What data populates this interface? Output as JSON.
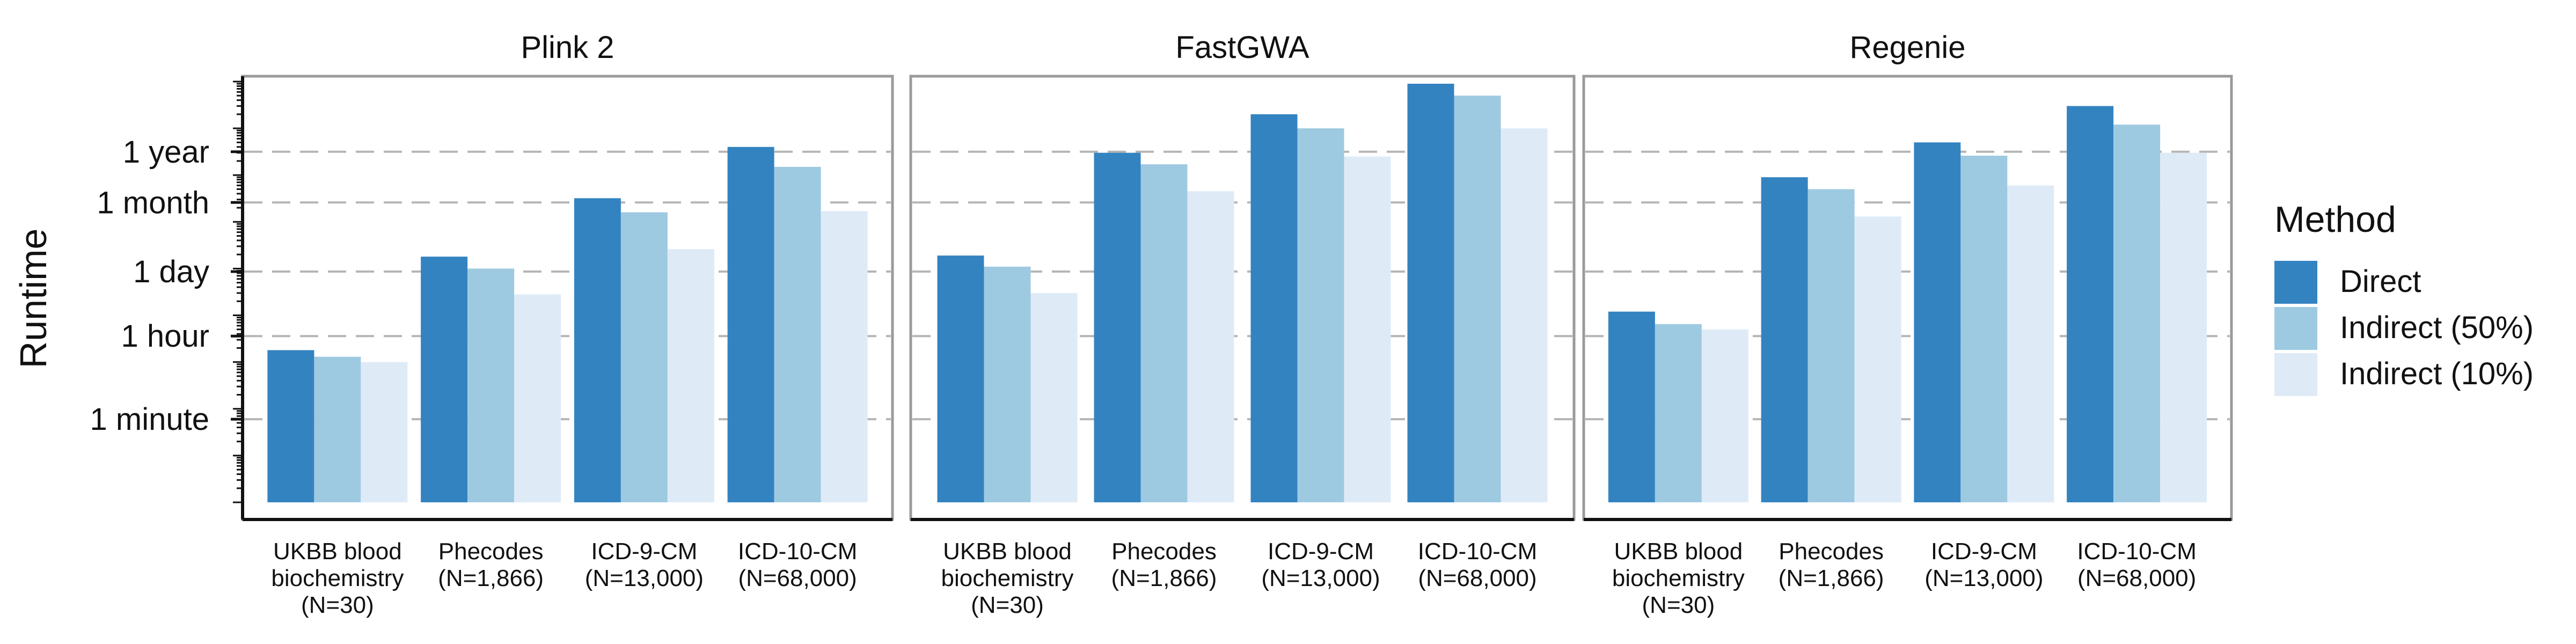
{
  "chart_data": {
    "type": "bar",
    "ylabel": "Runtime",
    "yscale": "log",
    "yunit": "seconds",
    "ylim": [
      1,
      1000000000
    ],
    "grid_y": true,
    "y_tick_labels": [
      {
        "label": "1 minute",
        "value": 60
      },
      {
        "label": "1 hour",
        "value": 3600
      },
      {
        "label": "1 day",
        "value": 86400
      },
      {
        "label": "1 month",
        "value": 2592000
      },
      {
        "label": "1 year",
        "value": 31536000
      }
    ],
    "legend_placement": "right",
    "legend_title": "Method",
    "categories": [
      [
        "UKBB blood",
        "biochemistry",
        "(N=30)"
      ],
      [
        "Phecodes",
        "(N=1,866)"
      ],
      [
        "ICD-9-CM",
        "(N=13,000)"
      ],
      [
        "ICD-10-CM",
        "(N=68,000)"
      ]
    ],
    "panels": [
      {
        "title": "Plink 2",
        "series": [
          {
            "name": "Direct",
            "values": [
              1800,
              180000,
              3200000,
              40000000
            ]
          },
          {
            "name": "Indirect (50%)",
            "values": [
              1300,
              100000,
              1600000,
              15000000
            ]
          },
          {
            "name": "Indirect (10%)",
            "values": [
              1000,
              28000,
              260000,
              1700000
            ]
          }
        ]
      },
      {
        "title": "FastGWA",
        "series": [
          {
            "name": "Direct",
            "values": [
              190000,
              30000000,
              200000000,
              900000000
            ]
          },
          {
            "name": "Indirect (50%)",
            "values": [
              110000,
              17000000,
              100000000,
              500000000
            ]
          },
          {
            "name": "Indirect (10%)",
            "values": [
              30000,
              4500000,
              25000000,
              100000000
            ]
          }
        ]
      },
      {
        "title": "Regenie",
        "series": [
          {
            "name": "Direct",
            "values": [
              12000,
              9000000,
              50000000,
              300000000
            ]
          },
          {
            "name": "Indirect (50%)",
            "values": [
              6500,
              5000000,
              26000000,
              120000000
            ]
          },
          {
            "name": "Indirect (10%)",
            "values": [
              5000,
              1300000,
              6000000,
              30000000
            ]
          }
        ]
      }
    ],
    "colors": [
      "#3483c1",
      "#9ecae1",
      "#deebf7"
    ]
  }
}
